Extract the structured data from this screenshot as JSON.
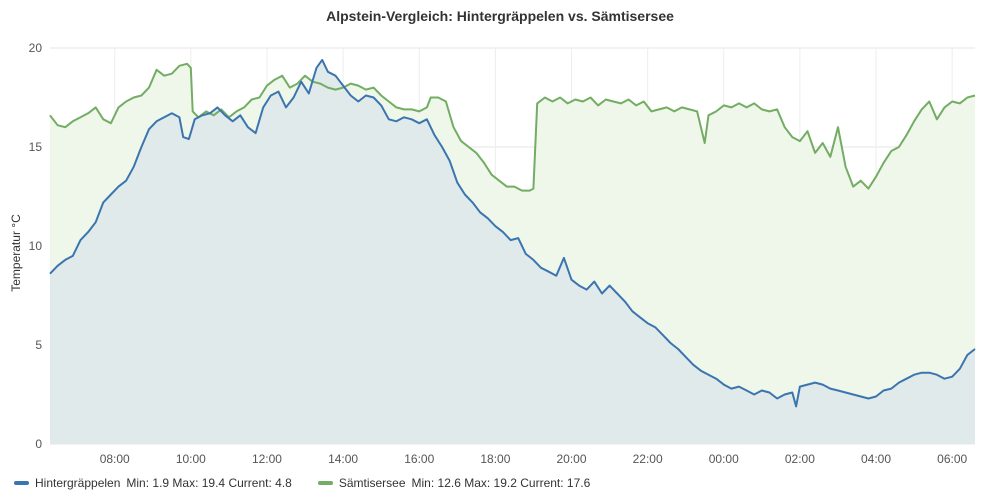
{
  "chart_data": {
    "type": "line",
    "title": "Alpstein-Vergleich: Hintergräppelen vs. Sämtisersee",
    "xlabel": "",
    "ylabel": "Temperatur °C",
    "x_unit": "hours since 08:00 (day 1)",
    "xlim": [
      -1.7,
      22.6
    ],
    "ylim": [
      0,
      20
    ],
    "yticks": [
      "0",
      "5",
      "10",
      "15",
      "20"
    ],
    "xticks": [
      {
        "x": 0,
        "label": "08:00"
      },
      {
        "x": 2,
        "label": "10:00"
      },
      {
        "x": 4,
        "label": "12:00"
      },
      {
        "x": 6,
        "label": "14:00"
      },
      {
        "x": 8,
        "label": "16:00"
      },
      {
        "x": 10,
        "label": "18:00"
      },
      {
        "x": 12,
        "label": "20:00"
      },
      {
        "x": 14,
        "label": "22:00"
      },
      {
        "x": 16,
        "label": "00:00"
      },
      {
        "x": 18,
        "label": "02:00"
      },
      {
        "x": 20,
        "label": "04:00"
      },
      {
        "x": 22,
        "label": "06:00"
      }
    ],
    "grid": true,
    "legend_position": "bottom-left",
    "series": [
      {
        "name": "Hintergräppelen",
        "color": "#3b75af",
        "fill": "#e1eaea",
        "min": "1.9",
        "max": "19.4",
        "current": "4.8",
        "points": [
          [
            -1.7,
            8.6
          ],
          [
            -1.5,
            9.0
          ],
          [
            -1.3,
            9.3
          ],
          [
            -1.1,
            9.5
          ],
          [
            -0.9,
            10.3
          ],
          [
            -0.7,
            10.7
          ],
          [
            -0.5,
            11.2
          ],
          [
            -0.3,
            12.2
          ],
          [
            -0.1,
            12.6
          ],
          [
            0.1,
            13.0
          ],
          [
            0.3,
            13.3
          ],
          [
            0.5,
            14.0
          ],
          [
            0.7,
            15.0
          ],
          [
            0.9,
            15.9
          ],
          [
            1.1,
            16.3
          ],
          [
            1.3,
            16.5
          ],
          [
            1.5,
            16.7
          ],
          [
            1.7,
            16.5
          ],
          [
            1.8,
            15.5
          ],
          [
            1.95,
            15.4
          ],
          [
            2.1,
            16.4
          ],
          [
            2.3,
            16.6
          ],
          [
            2.5,
            16.7
          ],
          [
            2.7,
            17.0
          ],
          [
            2.9,
            16.6
          ],
          [
            3.1,
            16.3
          ],
          [
            3.3,
            16.6
          ],
          [
            3.5,
            16.0
          ],
          [
            3.7,
            15.7
          ],
          [
            3.9,
            17.0
          ],
          [
            4.1,
            17.6
          ],
          [
            4.3,
            17.8
          ],
          [
            4.5,
            17.0
          ],
          [
            4.7,
            17.5
          ],
          [
            4.9,
            18.3
          ],
          [
            5.1,
            17.7
          ],
          [
            5.3,
            19.0
          ],
          [
            5.45,
            19.4
          ],
          [
            5.6,
            18.8
          ],
          [
            5.8,
            18.6
          ],
          [
            6.0,
            18.1
          ],
          [
            6.2,
            17.6
          ],
          [
            6.4,
            17.3
          ],
          [
            6.6,
            17.6
          ],
          [
            6.8,
            17.5
          ],
          [
            7.0,
            17.1
          ],
          [
            7.2,
            16.4
          ],
          [
            7.4,
            16.3
          ],
          [
            7.6,
            16.5
          ],
          [
            7.8,
            16.4
          ],
          [
            8.0,
            16.2
          ],
          [
            8.2,
            16.4
          ],
          [
            8.4,
            15.6
          ],
          [
            8.6,
            15.0
          ],
          [
            8.8,
            14.3
          ],
          [
            9.0,
            13.2
          ],
          [
            9.2,
            12.6
          ],
          [
            9.4,
            12.2
          ],
          [
            9.6,
            11.7
          ],
          [
            9.8,
            11.4
          ],
          [
            10.0,
            11.0
          ],
          [
            10.2,
            10.7
          ],
          [
            10.4,
            10.3
          ],
          [
            10.6,
            10.4
          ],
          [
            10.8,
            9.6
          ],
          [
            11.0,
            9.3
          ],
          [
            11.2,
            8.9
          ],
          [
            11.4,
            8.7
          ],
          [
            11.6,
            8.5
          ],
          [
            11.8,
            9.4
          ],
          [
            12.0,
            8.3
          ],
          [
            12.2,
            8.0
          ],
          [
            12.4,
            7.8
          ],
          [
            12.6,
            8.2
          ],
          [
            12.8,
            7.6
          ],
          [
            13.0,
            8.0
          ],
          [
            13.2,
            7.6
          ],
          [
            13.4,
            7.2
          ],
          [
            13.6,
            6.7
          ],
          [
            13.8,
            6.4
          ],
          [
            14.0,
            6.1
          ],
          [
            14.2,
            5.9
          ],
          [
            14.4,
            5.5
          ],
          [
            14.6,
            5.1
          ],
          [
            14.8,
            4.8
          ],
          [
            15.0,
            4.4
          ],
          [
            15.2,
            4.0
          ],
          [
            15.4,
            3.7
          ],
          [
            15.6,
            3.5
          ],
          [
            15.8,
            3.3
          ],
          [
            16.0,
            3.0
          ],
          [
            16.2,
            2.8
          ],
          [
            16.4,
            2.9
          ],
          [
            16.6,
            2.7
          ],
          [
            16.8,
            2.5
          ],
          [
            17.0,
            2.7
          ],
          [
            17.2,
            2.6
          ],
          [
            17.4,
            2.3
          ],
          [
            17.6,
            2.5
          ],
          [
            17.8,
            2.6
          ],
          [
            17.9,
            1.9
          ],
          [
            18.0,
            2.9
          ],
          [
            18.2,
            3.0
          ],
          [
            18.4,
            3.1
          ],
          [
            18.6,
            3.0
          ],
          [
            18.8,
            2.8
          ],
          [
            19.0,
            2.7
          ],
          [
            19.2,
            2.6
          ],
          [
            19.4,
            2.5
          ],
          [
            19.6,
            2.4
          ],
          [
            19.8,
            2.3
          ],
          [
            20.0,
            2.4
          ],
          [
            20.2,
            2.7
          ],
          [
            20.4,
            2.8
          ],
          [
            20.6,
            3.1
          ],
          [
            20.8,
            3.3
          ],
          [
            21.0,
            3.5
          ],
          [
            21.2,
            3.6
          ],
          [
            21.4,
            3.6
          ],
          [
            21.6,
            3.5
          ],
          [
            21.8,
            3.3
          ],
          [
            22.0,
            3.4
          ],
          [
            22.2,
            3.8
          ],
          [
            22.4,
            4.5
          ],
          [
            22.6,
            4.8
          ]
        ]
      },
      {
        "name": "Sämtisersee",
        "color": "#73ad63",
        "fill": "#eff6ea",
        "min": "12.6",
        "max": "19.2",
        "current": "17.6",
        "points": [
          [
            -1.7,
            16.6
          ],
          [
            -1.5,
            16.1
          ],
          [
            -1.3,
            16.0
          ],
          [
            -1.1,
            16.3
          ],
          [
            -0.9,
            16.5
          ],
          [
            -0.7,
            16.7
          ],
          [
            -0.5,
            17.0
          ],
          [
            -0.3,
            16.4
          ],
          [
            -0.1,
            16.2
          ],
          [
            0.1,
            17.0
          ],
          [
            0.3,
            17.3
          ],
          [
            0.5,
            17.5
          ],
          [
            0.7,
            17.6
          ],
          [
            0.9,
            18.0
          ],
          [
            1.1,
            18.9
          ],
          [
            1.3,
            18.6
          ],
          [
            1.5,
            18.7
          ],
          [
            1.7,
            19.1
          ],
          [
            1.9,
            19.2
          ],
          [
            2.0,
            19.0
          ],
          [
            2.05,
            16.8
          ],
          [
            2.2,
            16.5
          ],
          [
            2.4,
            16.8
          ],
          [
            2.6,
            16.6
          ],
          [
            2.8,
            16.9
          ],
          [
            3.0,
            16.5
          ],
          [
            3.2,
            16.8
          ],
          [
            3.4,
            17.0
          ],
          [
            3.6,
            17.4
          ],
          [
            3.8,
            17.5
          ],
          [
            4.0,
            18.1
          ],
          [
            4.2,
            18.4
          ],
          [
            4.4,
            18.6
          ],
          [
            4.6,
            18.0
          ],
          [
            4.8,
            18.2
          ],
          [
            5.0,
            18.6
          ],
          [
            5.2,
            18.3
          ],
          [
            5.4,
            18.2
          ],
          [
            5.6,
            18.0
          ],
          [
            5.8,
            17.9
          ],
          [
            6.0,
            18.0
          ],
          [
            6.2,
            18.2
          ],
          [
            6.4,
            18.1
          ],
          [
            6.6,
            17.9
          ],
          [
            6.8,
            18.0
          ],
          [
            7.0,
            17.6
          ],
          [
            7.2,
            17.3
          ],
          [
            7.4,
            17.0
          ],
          [
            7.6,
            16.9
          ],
          [
            7.8,
            16.9
          ],
          [
            8.0,
            16.8
          ],
          [
            8.2,
            17.0
          ],
          [
            8.3,
            17.5
          ],
          [
            8.5,
            17.5
          ],
          [
            8.7,
            17.3
          ],
          [
            8.9,
            16.0
          ],
          [
            9.1,
            15.3
          ],
          [
            9.3,
            15.0
          ],
          [
            9.5,
            14.7
          ],
          [
            9.7,
            14.2
          ],
          [
            9.9,
            13.6
          ],
          [
            10.1,
            13.3
          ],
          [
            10.3,
            13.0
          ],
          [
            10.5,
            13.0
          ],
          [
            10.7,
            12.8
          ],
          [
            10.9,
            12.8
          ],
          [
            11.0,
            12.9
          ],
          [
            11.1,
            17.2
          ],
          [
            11.3,
            17.5
          ],
          [
            11.5,
            17.3
          ],
          [
            11.7,
            17.5
          ],
          [
            11.9,
            17.2
          ],
          [
            12.1,
            17.4
          ],
          [
            12.3,
            17.3
          ],
          [
            12.5,
            17.5
          ],
          [
            12.7,
            17.1
          ],
          [
            12.9,
            17.4
          ],
          [
            13.1,
            17.3
          ],
          [
            13.3,
            17.2
          ],
          [
            13.5,
            17.4
          ],
          [
            13.7,
            17.1
          ],
          [
            13.9,
            17.3
          ],
          [
            14.1,
            16.8
          ],
          [
            14.3,
            16.9
          ],
          [
            14.5,
            17.0
          ],
          [
            14.7,
            16.8
          ],
          [
            14.9,
            17.0
          ],
          [
            15.1,
            16.9
          ],
          [
            15.3,
            16.8
          ],
          [
            15.5,
            15.2
          ],
          [
            15.6,
            16.6
          ],
          [
            15.8,
            16.8
          ],
          [
            16.0,
            17.1
          ],
          [
            16.2,
            17.0
          ],
          [
            16.4,
            17.2
          ],
          [
            16.6,
            17.0
          ],
          [
            16.8,
            17.2
          ],
          [
            17.0,
            16.9
          ],
          [
            17.2,
            16.8
          ],
          [
            17.4,
            16.9
          ],
          [
            17.6,
            16.0
          ],
          [
            17.8,
            15.5
          ],
          [
            18.0,
            15.3
          ],
          [
            18.2,
            15.8
          ],
          [
            18.4,
            14.7
          ],
          [
            18.6,
            15.2
          ],
          [
            18.8,
            14.5
          ],
          [
            19.0,
            16.0
          ],
          [
            19.2,
            14.0
          ],
          [
            19.4,
            13.0
          ],
          [
            19.6,
            13.3
          ],
          [
            19.8,
            12.9
          ],
          [
            20.0,
            13.5
          ],
          [
            20.2,
            14.2
          ],
          [
            20.4,
            14.8
          ],
          [
            20.6,
            15.0
          ],
          [
            20.8,
            15.6
          ],
          [
            21.0,
            16.3
          ],
          [
            21.2,
            16.9
          ],
          [
            21.4,
            17.3
          ],
          [
            21.6,
            16.4
          ],
          [
            21.8,
            17.0
          ],
          [
            22.0,
            17.3
          ],
          [
            22.2,
            17.2
          ],
          [
            22.4,
            17.5
          ],
          [
            22.6,
            17.6
          ]
        ]
      }
    ]
  },
  "legend": [
    {
      "name": "Hintergräppelen",
      "stats": "Min: 1.9  Max: 19.4  Current: 4.8",
      "color": "#3b75af"
    },
    {
      "name": "Sämtisersee",
      "stats": "Min: 12.6  Max: 19.2  Current: 17.6",
      "color": "#73ad63"
    }
  ]
}
